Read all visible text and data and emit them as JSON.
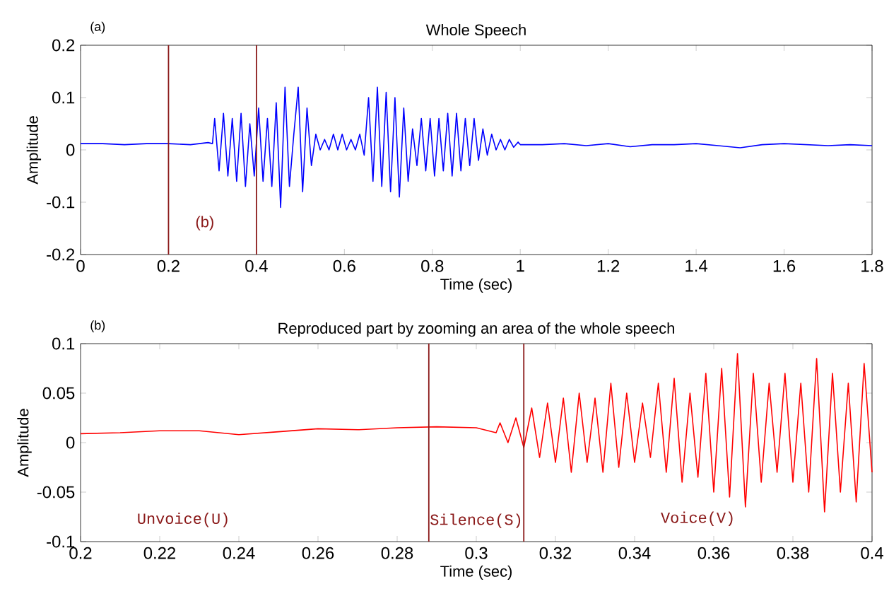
{
  "chart_data": [
    {
      "type": "line",
      "title": "Whole Speech",
      "xlabel": "Time (sec)",
      "ylabel": "Amplitude",
      "series": [
        {
          "color": "#0000ff",
          "x": [
            0,
            0.05,
            0.1,
            0.15,
            0.2,
            0.25,
            0.29,
            0.3,
            0.305,
            0.315,
            0.325,
            0.335,
            0.345,
            0.355,
            0.365,
            0.375,
            0.385,
            0.395,
            0.405,
            0.415,
            0.425,
            0.435,
            0.445,
            0.455,
            0.465,
            0.475,
            0.485,
            0.495,
            0.505,
            0.515,
            0.525,
            0.535,
            0.545,
            0.555,
            0.565,
            0.575,
            0.585,
            0.595,
            0.605,
            0.615,
            0.625,
            0.635,
            0.645,
            0.655,
            0.665,
            0.675,
            0.685,
            0.695,
            0.705,
            0.715,
            0.725,
            0.735,
            0.745,
            0.755,
            0.765,
            0.775,
            0.785,
            0.795,
            0.805,
            0.815,
            0.825,
            0.835,
            0.845,
            0.855,
            0.865,
            0.875,
            0.885,
            0.895,
            0.905,
            0.915,
            0.925,
            0.935,
            0.945,
            0.955,
            0.965,
            0.975,
            0.985,
            0.995,
            1.0,
            1.05,
            1.1,
            1.15,
            1.2,
            1.25,
            1.3,
            1.35,
            1.4,
            1.45,
            1.5,
            1.55,
            1.6,
            1.65,
            1.7,
            1.75,
            1.8
          ],
          "values": [
            0.012,
            0.012,
            0.01,
            0.012,
            0.012,
            0.01,
            0.014,
            0.012,
            0.06,
            -0.04,
            0.07,
            -0.05,
            0.06,
            -0.06,
            0.07,
            -0.07,
            0.05,
            -0.05,
            0.08,
            -0.06,
            0.06,
            -0.07,
            0.09,
            -0.11,
            0.12,
            -0.07,
            0.03,
            0.12,
            -0.08,
            0.08,
            -0.03,
            0.03,
            0.0,
            0.02,
            0.0,
            0.03,
            0.0,
            0.03,
            0.0,
            0.02,
            0.0,
            0.03,
            -0.01,
            0.1,
            -0.06,
            0.12,
            -0.07,
            0.11,
            -0.08,
            0.1,
            -0.09,
            0.08,
            -0.06,
            0.04,
            -0.03,
            0.06,
            -0.04,
            0.06,
            -0.05,
            0.06,
            -0.04,
            0.07,
            -0.05,
            0.07,
            -0.04,
            0.06,
            -0.03,
            0.06,
            -0.02,
            0.04,
            -0.01,
            0.03,
            0.0,
            0.02,
            0.0,
            0.02,
            0.005,
            0.015,
            0.01,
            0.01,
            0.012,
            0.008,
            0.012,
            0.006,
            0.01,
            0.01,
            0.012,
            0.008,
            0.004,
            0.01,
            0.012,
            0.01,
            0.008,
            0.01,
            0.008
          ]
        }
      ],
      "xlim": [
        0,
        1.8
      ],
      "xticks": [
        0,
        0.2,
        0.4,
        0.6,
        0.8,
        1,
        1.2,
        1.4,
        1.6,
        1.8
      ],
      "ylim": [
        -0.2,
        0.2
      ],
      "yticks": [
        -0.2,
        -0.1,
        0,
        0.1,
        0.2
      ],
      "ref_lines": [
        {
          "axis": "x",
          "value": 0.2,
          "color": "#8b1a1a"
        },
        {
          "axis": "x",
          "value": 0.4,
          "color": "#8b1a1a"
        }
      ],
      "annotations": [
        "(a)",
        "(b)"
      ]
    },
    {
      "type": "line",
      "title": "Reproduced part by zooming an area of the whole speech",
      "xlabel": "Time (sec)",
      "ylabel": "Amplitude",
      "series": [
        {
          "color": "#ff0000",
          "x": [
            0.2,
            0.21,
            0.22,
            0.23,
            0.24,
            0.25,
            0.26,
            0.27,
            0.28,
            0.29,
            0.3,
            0.305,
            0.306,
            0.308,
            0.31,
            0.312,
            0.314,
            0.316,
            0.318,
            0.32,
            0.322,
            0.324,
            0.326,
            0.328,
            0.33,
            0.332,
            0.334,
            0.336,
            0.338,
            0.34,
            0.342,
            0.344,
            0.346,
            0.348,
            0.35,
            0.352,
            0.354,
            0.356,
            0.358,
            0.36,
            0.362,
            0.364,
            0.366,
            0.368,
            0.37,
            0.372,
            0.374,
            0.376,
            0.378,
            0.38,
            0.382,
            0.384,
            0.386,
            0.388,
            0.39,
            0.392,
            0.394,
            0.396,
            0.398,
            0.4
          ],
          "values": [
            0.009,
            0.01,
            0.012,
            0.012,
            0.008,
            0.011,
            0.014,
            0.013,
            0.015,
            0.016,
            0.015,
            0.01,
            0.02,
            0.0,
            0.025,
            -0.005,
            0.035,
            -0.015,
            0.04,
            -0.02,
            0.045,
            -0.03,
            0.05,
            -0.02,
            0.045,
            -0.03,
            0.06,
            -0.025,
            0.05,
            -0.02,
            0.04,
            -0.015,
            0.06,
            -0.03,
            0.065,
            -0.04,
            0.05,
            -0.035,
            0.07,
            -0.05,
            0.075,
            -0.055,
            0.09,
            -0.065,
            0.07,
            -0.04,
            0.06,
            -0.03,
            0.07,
            -0.04,
            0.06,
            -0.05,
            0.085,
            -0.07,
            0.07,
            -0.05,
            0.06,
            -0.06,
            0.08,
            -0.03
          ]
        }
      ],
      "xlim": [
        0.2,
        0.4
      ],
      "xticks": [
        0.2,
        0.22,
        0.24,
        0.26,
        0.28,
        0.3,
        0.32,
        0.34,
        0.36,
        0.38,
        0.4
      ],
      "ylim": [
        -0.1,
        0.1
      ],
      "yticks": [
        -0.1,
        -0.05,
        0,
        0.05,
        0.1
      ],
      "ref_lines": [
        {
          "axis": "x",
          "value": 0.288,
          "color": "#8b1a1a"
        },
        {
          "axis": "x",
          "value": 0.312,
          "color": "#8b1a1a"
        }
      ],
      "annotations": [
        "(b)",
        "Unvoice(U)",
        "Silence(S)",
        "Voice(V)"
      ]
    }
  ]
}
